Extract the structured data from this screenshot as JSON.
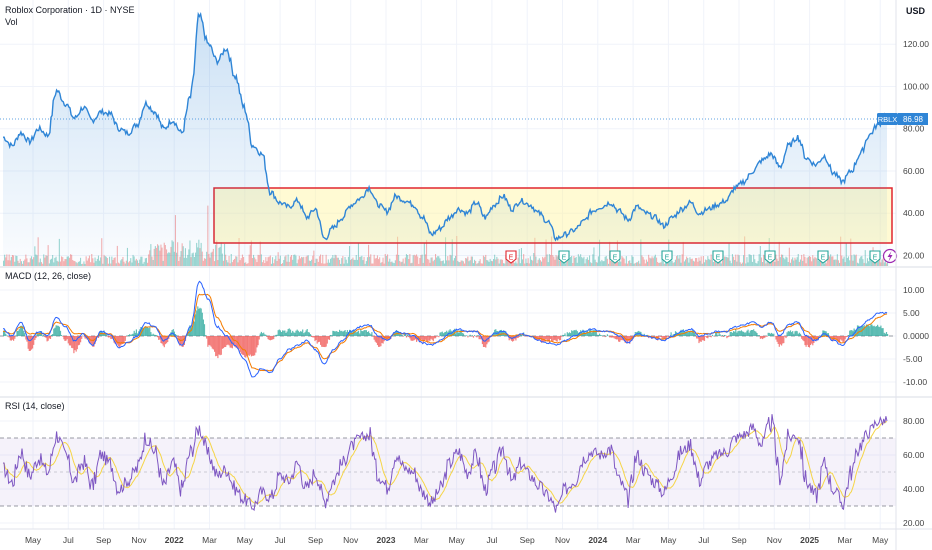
{
  "header": {
    "title": "Roblox Corporation · 1D · NYSE",
    "vol_label": "Vol",
    "currency": "USD"
  },
  "price_tag": {
    "symbol": "RBLX",
    "value": "86.98"
  },
  "chart_data": [
    {
      "type": "line",
      "panel": "price",
      "ylim": [
        15,
        140
      ],
      "yticks": [
        "120.00",
        "100.00",
        "80.00",
        "60.00",
        "40.00",
        "20.00"
      ],
      "ytick_values": [
        120,
        100,
        80,
        60,
        40,
        20
      ],
      "series": [
        {
          "name": "",
          "x_months": [
            0,
            0.5,
            1,
            1.5,
            2,
            2.5,
            3,
            3.5,
            4,
            4.5,
            5,
            5.5,
            6,
            6.5,
            7,
            7.5,
            8,
            8.5,
            9,
            9.5,
            10,
            10.5,
            11,
            11.5,
            12,
            12.5,
            13,
            13.5,
            14,
            14.5,
            15,
            15.5,
            16,
            16.5,
            17,
            17.5,
            18,
            18.5,
            19,
            19.5,
            20,
            20.5,
            21,
            21.5,
            22,
            22.5,
            23,
            23.5,
            24,
            24.5,
            25,
            25.5,
            26,
            26.5,
            27,
            27.5,
            28,
            28.5,
            29,
            29.5,
            30,
            30.5,
            31,
            31.5,
            32,
            32.5,
            33,
            33.5,
            34,
            34.5,
            35,
            35.5,
            36,
            36.5,
            37,
            37.5,
            38,
            38.5,
            39,
            39.5,
            40,
            40.5,
            41,
            41.5,
            42,
            42.5,
            43,
            43.5,
            44,
            44.5,
            45,
            45.5,
            46,
            46.5,
            47,
            47.5,
            48,
            48.5,
            49,
            49.5
          ],
          "values": [
            76,
            72,
            78,
            74,
            80,
            77,
            98,
            92,
            85,
            90,
            84,
            88,
            87,
            80,
            78,
            82,
            92,
            88,
            80,
            84,
            78,
            95,
            133,
            120,
            112,
            118,
            105,
            90,
            72,
            68,
            50,
            45,
            43,
            46,
            38,
            42,
            28,
            33,
            38,
            44,
            47,
            52,
            44,
            41,
            48,
            46,
            44,
            38,
            30,
            33,
            38,
            42,
            40,
            45,
            38,
            44,
            48,
            42,
            46,
            44,
            40,
            36,
            28,
            30,
            32,
            36,
            41,
            43,
            45,
            41,
            37,
            43,
            40,
            38,
            34,
            38,
            42,
            45,
            40,
            42,
            44,
            46,
            52,
            55,
            60,
            65,
            68,
            62,
            72,
            76,
            66,
            63,
            67,
            59,
            55,
            60,
            68,
            77,
            82,
            87
          ]
        }
      ]
    },
    {
      "type": "line",
      "panel": "MACD (12, 26, close)",
      "title": "MACD (12, 26, close)",
      "ylim": [
        -14,
        15
      ],
      "yticks": [
        "10.00",
        "5.00",
        "0.0000",
        "-5.00",
        "-10.00"
      ],
      "ytick_values": [
        10,
        5,
        0,
        -5,
        -10
      ],
      "series": [
        {
          "name": "",
          "values": [
            1.5,
            0,
            3,
            -1,
            1,
            0,
            4,
            2,
            -1,
            0.5,
            -2,
            1,
            0.2,
            -2.5,
            -1.5,
            0,
            3,
            2,
            -1,
            0.5,
            -2,
            2,
            12,
            8,
            2,
            0,
            -2,
            -5,
            -9,
            -7,
            -8,
            -5,
            -3,
            -2,
            -1,
            -3,
            -6,
            -3,
            -1,
            1,
            2,
            2.5,
            0,
            -1,
            1,
            0.5,
            0,
            -1.5,
            -2,
            -1,
            0.5,
            1.5,
            1,
            1,
            -1,
            0.5,
            1,
            -0.5,
            0.5,
            0,
            -1,
            -1.5,
            -2,
            -1,
            0,
            1,
            1.5,
            1,
            1,
            0,
            -1.5,
            0.5,
            0,
            -0.5,
            -1,
            0,
            1,
            1.5,
            0,
            0.5,
            1,
            1,
            2,
            2.5,
            3,
            2,
            3,
            0,
            2.5,
            3,
            0,
            -1,
            0.5,
            -1,
            -2,
            0,
            2,
            3.5,
            5,
            5
          ]
        },
        {
          "name": "",
          "values": [
            1,
            0.5,
            2,
            0.5,
            0.5,
            0.5,
            3,
            2.5,
            0.5,
            0.5,
            -1,
            0.5,
            0.5,
            -1.5,
            -1.5,
            -0.5,
            2,
            2,
            0,
            0,
            -1,
            1,
            9,
            9,
            4,
            1,
            -1,
            -3,
            -7,
            -7.5,
            -7.5,
            -5.5,
            -3.5,
            -2.5,
            -1.5,
            -2.5,
            -5,
            -3.5,
            -1.5,
            0.5,
            1.5,
            2,
            1,
            -0.5,
            0.5,
            0.5,
            0.5,
            -1,
            -1.5,
            -1.2,
            0,
            1,
            1,
            1,
            0,
            0,
            0.5,
            0,
            0.3,
            0,
            -0.5,
            -1,
            -1.5,
            -1.2,
            -0.5,
            0.5,
            1,
            1,
            1,
            0.5,
            -0.8,
            0,
            0,
            -0.3,
            -0.7,
            -0.2,
            0.5,
            1,
            0.5,
            0.5,
            0.8,
            1,
            1.5,
            2,
            2.5,
            2.2,
            2.7,
            1,
            2,
            2.7,
            1,
            -0.5,
            0,
            -0.5,
            -1.5,
            -0.5,
            1,
            2.5,
            4,
            4.8
          ]
        }
      ]
    },
    {
      "type": "line",
      "panel": "RSI (14, close)",
      "title": "RSI (14, close)",
      "ylim": [
        15,
        88
      ],
      "yticks": [
        "80.00",
        "60.00",
        "40.00",
        "20.00"
      ],
      "ytick_values": [
        80,
        60,
        40,
        20
      ],
      "series": [
        {
          "name": "",
          "values": [
            52,
            44,
            62,
            48,
            58,
            50,
            72,
            60,
            45,
            56,
            42,
            60,
            55,
            40,
            45,
            52,
            70,
            62,
            42,
            55,
            40,
            62,
            76,
            60,
            48,
            52,
            40,
            34,
            30,
            38,
            35,
            48,
            45,
            55,
            40,
            50,
            33,
            45,
            55,
            65,
            70,
            72,
            48,
            42,
            60,
            52,
            50,
            38,
            32,
            40,
            55,
            62,
            50,
            60,
            40,
            52,
            64,
            44,
            55,
            48,
            42,
            36,
            28,
            40,
            45,
            58,
            62,
            60,
            64,
            45,
            35,
            60,
            50,
            44,
            38,
            50,
            62,
            66,
            45,
            55,
            60,
            62,
            70,
            72,
            76,
            66,
            80,
            48,
            70,
            72,
            44,
            36,
            55,
            40,
            32,
            50,
            66,
            74,
            80,
            80
          ]
        }
      ]
    }
  ],
  "x_axis": {
    "labels": [
      "May",
      "Jul",
      "Sep",
      "Nov",
      "2022",
      "Mar",
      "May",
      "Jul",
      "Sep",
      "Nov",
      "2023",
      "Mar",
      "May",
      "Jul",
      "Sep",
      "Nov",
      "2024",
      "Mar",
      "May",
      "Jul",
      "Sep",
      "Nov",
      "2025",
      "Mar",
      "May"
    ]
  },
  "earnings_marker": "E",
  "colors": {
    "price": "#2f85d6",
    "macd": "#2962ff",
    "signal": "#f57c00",
    "rsi": "#7e57c2",
    "rsi_ma": "#f5d547",
    "box": "#e1262f",
    "up": "#26a69a",
    "down": "#ef5350",
    "tag": "#2f85d6",
    "flash": "#9c27b0"
  }
}
